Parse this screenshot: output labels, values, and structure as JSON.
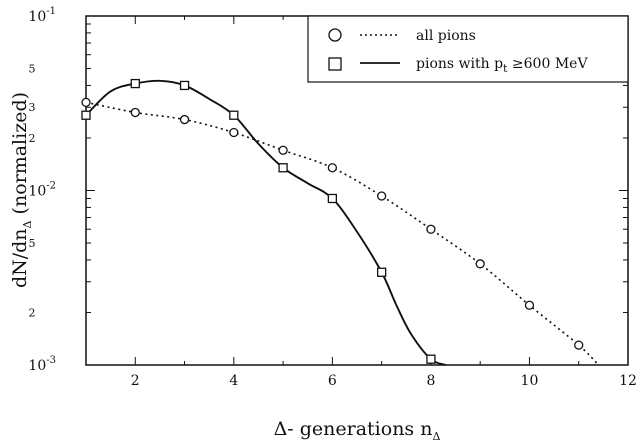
{
  "chart_data": {
    "type": "line",
    "xlabel_main": "Δ- generations n",
    "xlabel_sub": "Δ",
    "ylabel_main": "dN/dn",
    "ylabel_sub": "Δ",
    "ylabel_tail": " (normalized)",
    "xlim": [
      1,
      12
    ],
    "ylim": [
      0.001,
      0.1
    ],
    "y_scale": "log",
    "grid": false,
    "legend_placement": "top-right",
    "x_ticks": [
      "2",
      "4",
      "6",
      "8",
      "10",
      "12"
    ],
    "y_major_ticks": [
      {
        "value": 0.1,
        "base": "10",
        "exp": "-1"
      },
      {
        "value": 0.01,
        "base": "10",
        "exp": "-2"
      },
      {
        "value": 0.001,
        "base": "10",
        "exp": "-3"
      }
    ],
    "y_minor_labels": [
      {
        "value": 0.05,
        "label": "5"
      },
      {
        "value": 0.03,
        "label": "3"
      },
      {
        "value": 0.02,
        "label": "2"
      },
      {
        "value": 0.005,
        "label": "5"
      },
      {
        "value": 0.002,
        "label": "2"
      }
    ],
    "series": [
      {
        "name": "all pions",
        "marker": "circle",
        "line_style": "dotted",
        "x": [
          1,
          2,
          3,
          4,
          5,
          6,
          7,
          8,
          9,
          10,
          11
        ],
        "y": [
          0.032,
          0.028,
          0.0255,
          0.0215,
          0.017,
          0.0135,
          0.0093,
          0.006,
          0.0038,
          0.0022,
          0.0013
        ],
        "curve_x": [
          1,
          2,
          3,
          4,
          5,
          6,
          7,
          8,
          9,
          10,
          11,
          11.4
        ],
        "curve_y": [
          0.032,
          0.028,
          0.0255,
          0.0215,
          0.017,
          0.0135,
          0.0093,
          0.006,
          0.0038,
          0.0022,
          0.0013,
          0.001
        ]
      },
      {
        "name_main": "pions with p",
        "name_sub": "t",
        "name_tail": " ≥600 MeV",
        "marker": "square",
        "line_style": "solid",
        "x": [
          1,
          2,
          3,
          4,
          5,
          6,
          7,
          8
        ],
        "y": [
          0.027,
          0.041,
          0.04,
          0.027,
          0.0135,
          0.009,
          0.0034,
          0.00108
        ],
        "curve_x": [
          1,
          1.5,
          2,
          2.5,
          3,
          3.5,
          4,
          4.5,
          5,
          5.5,
          6,
          6.5,
          7,
          7.3,
          7.6,
          8,
          8.3
        ],
        "curve_y": [
          0.027,
          0.037,
          0.041,
          0.0425,
          0.04,
          0.0335,
          0.027,
          0.0185,
          0.0135,
          0.011,
          0.009,
          0.0058,
          0.0034,
          0.0022,
          0.0015,
          0.00108,
          0.001
        ]
      }
    ]
  }
}
